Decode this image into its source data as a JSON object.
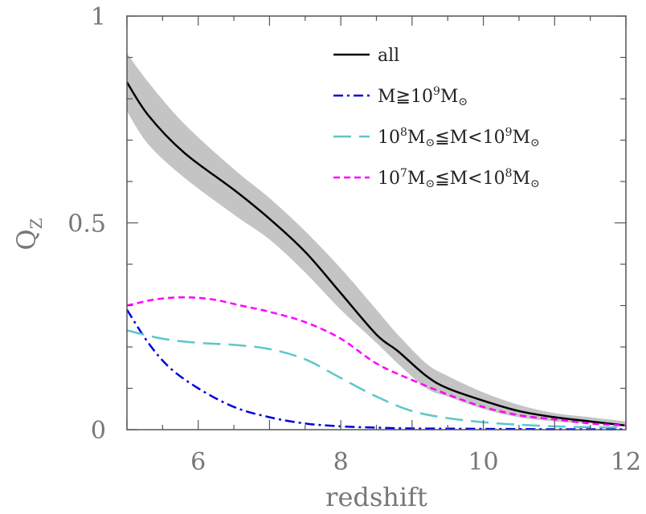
{
  "chart_data": {
    "type": "line",
    "xlabel": "redshift",
    "ylabel": "Q",
    "ylabel_subscript": "Z",
    "xlim": [
      5,
      12
    ],
    "ylim": [
      0,
      1
    ],
    "xticks": [
      6,
      8,
      10,
      12
    ],
    "xtick_labels": [
      "6",
      "8",
      "10",
      "12"
    ],
    "yticks": [
      0,
      0.5,
      1
    ],
    "ytick_labels": [
      "0",
      "0.5",
      "1"
    ],
    "grid": false,
    "legend_position": "top-right",
    "band": {
      "x": [
        5.0,
        5.3,
        5.8,
        6.5,
        7.0,
        7.5,
        8.0,
        8.5,
        8.8,
        9.2,
        9.5,
        10.0,
        10.5,
        11.0,
        11.5,
        12.0
      ],
      "upper": [
        0.91,
        0.84,
        0.74,
        0.63,
        0.56,
        0.48,
        0.39,
        0.29,
        0.23,
        0.16,
        0.13,
        0.09,
        0.06,
        0.04,
        0.03,
        0.02
      ],
      "lower": [
        0.77,
        0.69,
        0.61,
        0.52,
        0.46,
        0.38,
        0.29,
        0.21,
        0.16,
        0.1,
        0.08,
        0.05,
        0.03,
        0.02,
        0.015,
        0.01
      ]
    },
    "series": [
      {
        "name": "all",
        "color": "#000000",
        "dash": "solid",
        "x": [
          5.0,
          5.3,
          5.8,
          6.5,
          7.0,
          7.5,
          8.0,
          8.5,
          8.8,
          9.2,
          9.5,
          10.0,
          10.5,
          11.0,
          11.5,
          12.0
        ],
        "y": [
          0.84,
          0.76,
          0.67,
          0.58,
          0.51,
          0.43,
          0.33,
          0.23,
          0.19,
          0.13,
          0.1,
          0.07,
          0.045,
          0.03,
          0.02,
          0.01
        ]
      },
      {
        "name": "M≧10⁹M⊙",
        "color": "#0000dd",
        "dash": "dashdot",
        "x": [
          5.0,
          5.3,
          5.6,
          6.0,
          6.5,
          7.0,
          7.5,
          8.0,
          8.5,
          9.0,
          10.0,
          11.0,
          12.0
        ],
        "y": [
          0.29,
          0.21,
          0.15,
          0.1,
          0.055,
          0.03,
          0.015,
          0.008,
          0.005,
          0.003,
          0.002,
          0.001,
          0.001
        ]
      },
      {
        "name": "10⁸M⊙≦M<10⁹M⊙",
        "color": "#5cc7c7",
        "dash": "longdash",
        "x": [
          5.0,
          5.5,
          6.0,
          6.5,
          7.0,
          7.5,
          8.0,
          8.5,
          9.0,
          9.5,
          10.0,
          10.5,
          11.0,
          11.5,
          12.0
        ],
        "y": [
          0.24,
          0.22,
          0.21,
          0.205,
          0.195,
          0.17,
          0.125,
          0.08,
          0.045,
          0.028,
          0.018,
          0.012,
          0.008,
          0.006,
          0.005
        ]
      },
      {
        "name": "10⁷M⊙≦M<10⁸M⊙",
        "color": "#ff00ff",
        "dash": "shortdash",
        "x": [
          5.0,
          5.4,
          5.8,
          6.2,
          6.6,
          7.0,
          7.5,
          8.0,
          8.5,
          9.0,
          9.5,
          10.0,
          10.5,
          11.0,
          11.5,
          12.0
        ],
        "y": [
          0.3,
          0.315,
          0.32,
          0.315,
          0.3,
          0.285,
          0.26,
          0.22,
          0.16,
          0.12,
          0.085,
          0.055,
          0.035,
          0.025,
          0.015,
          0.01
        ]
      }
    ],
    "legend": [
      {
        "key": "all",
        "parts": [
          {
            "t": "all",
            "s": ""
          }
        ]
      },
      {
        "key": "m9",
        "parts": [
          {
            "t": "M≧10",
            "s": ""
          },
          {
            "t": "9",
            "s": "sup"
          },
          {
            "t": "M",
            "s": ""
          },
          {
            "t": "⊙",
            "s": "sub"
          }
        ]
      },
      {
        "key": "m8",
        "parts": [
          {
            "t": "10",
            "s": ""
          },
          {
            "t": "8",
            "s": "sup"
          },
          {
            "t": "M",
            "s": ""
          },
          {
            "t": "⊙",
            "s": "sub"
          },
          {
            "t": "≦M<10",
            "s": ""
          },
          {
            "t": "9",
            "s": "sup"
          },
          {
            "t": "M",
            "s": ""
          },
          {
            "t": "⊙",
            "s": "sub"
          }
        ]
      },
      {
        "key": "m7",
        "parts": [
          {
            "t": "10",
            "s": ""
          },
          {
            "t": "7",
            "s": "sup"
          },
          {
            "t": "M",
            "s": ""
          },
          {
            "t": "⊙",
            "s": "sub"
          },
          {
            "t": "≦M<10",
            "s": ""
          },
          {
            "t": "8",
            "s": "sup"
          },
          {
            "t": "M",
            "s": ""
          },
          {
            "t": "⊙",
            "s": "sub"
          }
        ]
      }
    ]
  }
}
